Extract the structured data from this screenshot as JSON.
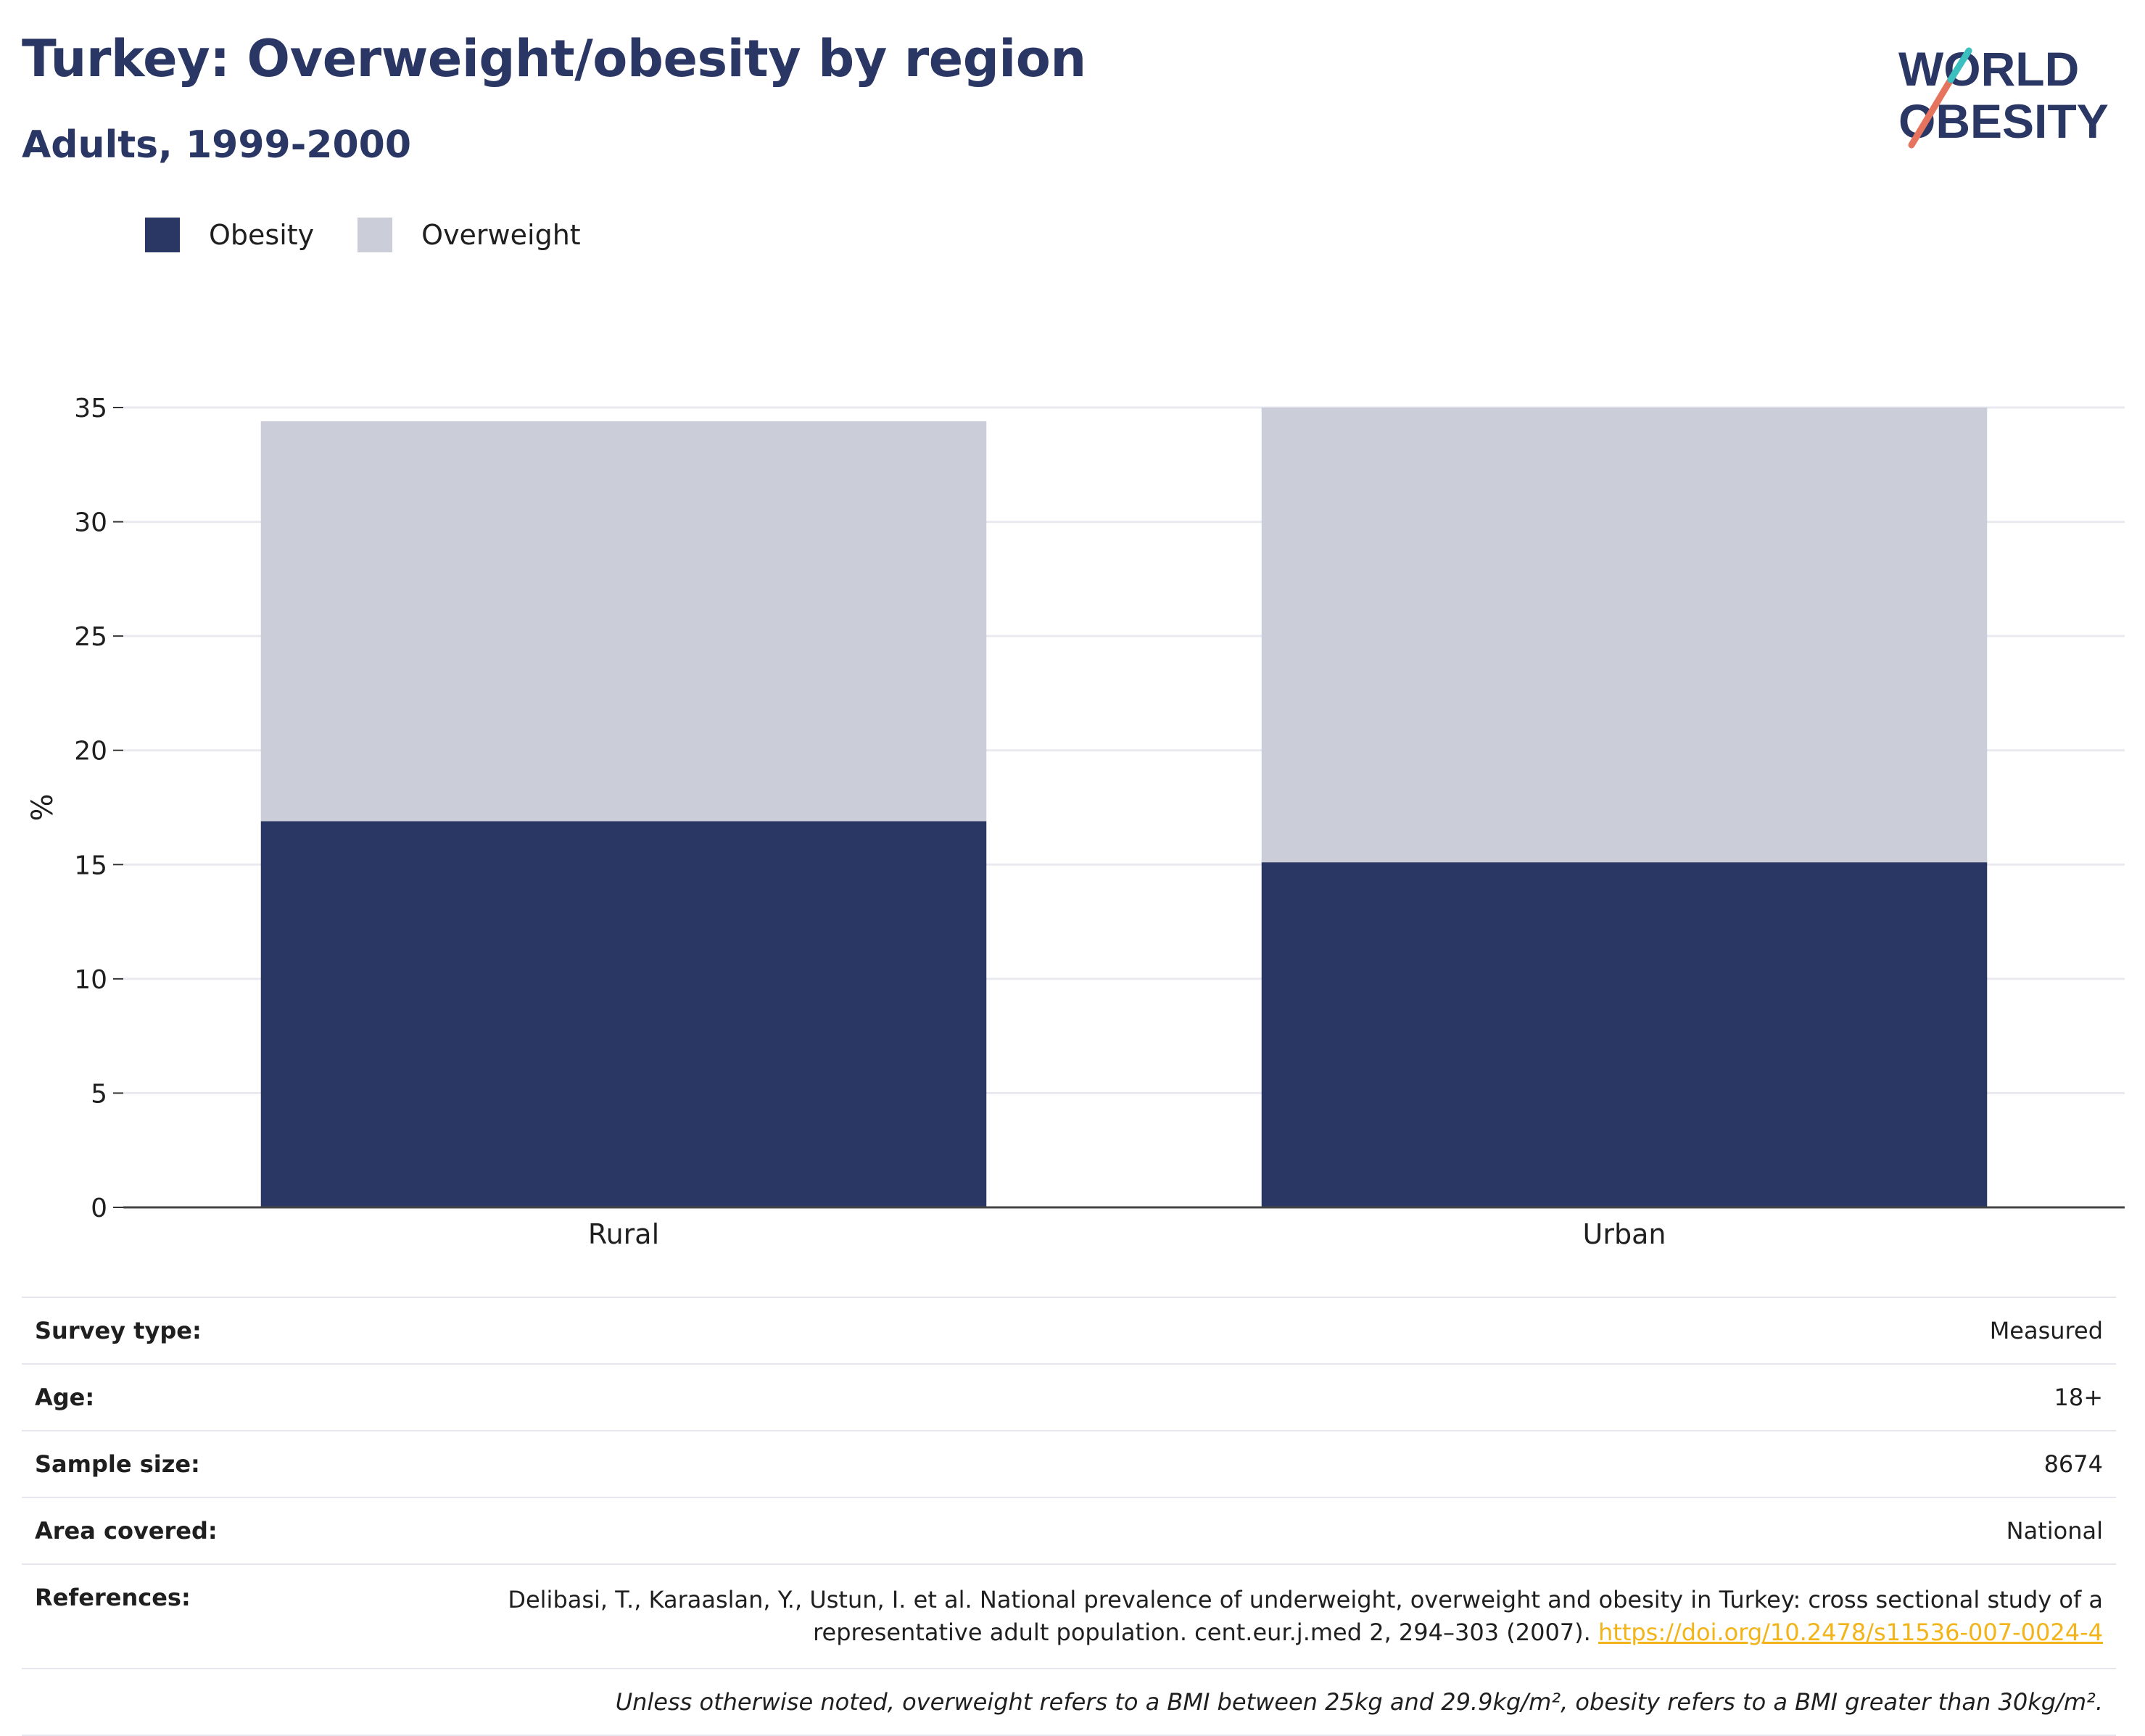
{
  "header": {
    "title": "Turkey: Overweight/obesity by region",
    "subtitle": "Adults, 1999-2000"
  },
  "logo": {
    "line1": "WORLD",
    "line2": "OBESITY"
  },
  "chart_data": {
    "type": "bar",
    "stacked": true,
    "categories": [
      "Rural",
      "Urban"
    ],
    "series": [
      {
        "name": "Obesity",
        "values": [
          16.9,
          15.1
        ],
        "color": "#2a3663"
      },
      {
        "name": "Overweight",
        "values": [
          17.5,
          19.9
        ],
        "color": "#cbcdd8"
      }
    ],
    "ylabel": "%",
    "ylim": [
      0,
      35
    ],
    "yticks": [
      0,
      5,
      10,
      15,
      20,
      25,
      30,
      35
    ],
    "grid": true,
    "legend": "top-left"
  },
  "details": {
    "survey_type": {
      "label": "Survey type:",
      "value": "Measured"
    },
    "age": {
      "label": "Age:",
      "value": "18+"
    },
    "sample_size": {
      "label": "Sample size:",
      "value": "8674"
    },
    "area_covered": {
      "label": "Area covered:",
      "value": "National"
    },
    "references": {
      "label": "References:",
      "text": "Delibasi, T., Karaaslan, Y., Ustun, I. et al. National prevalence of underweight, overweight and obesity in Turkey: cross sectional study of a representative adult population. cent.eur.j.med 2, 294–303 (2007).",
      "link": "https://doi.org/10.2478/s11536-007-0024-4"
    },
    "footnote": "Unless otherwise noted, overweight refers to a BMI between 25kg and 29.9kg/m², obesity refers to a BMI greater than 30kg/m²."
  }
}
